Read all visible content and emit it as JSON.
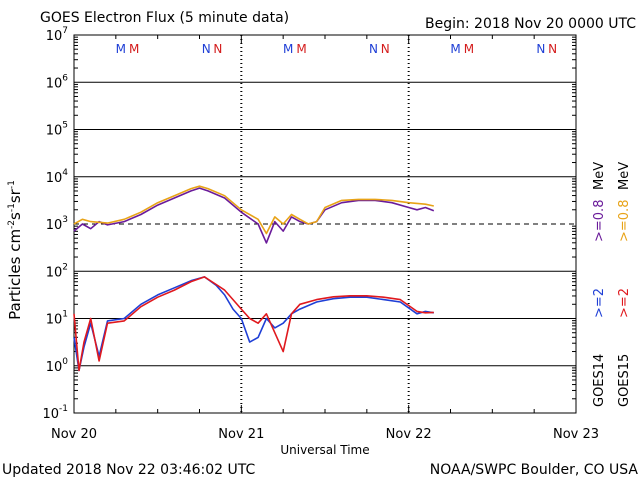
{
  "header": {
    "title": "GOES Electron Flux (5 minute data)",
    "begin": "Begin: 2018 Nov 20 0000 UTC"
  },
  "footer": {
    "updated": "Updated 2018 Nov 22 03:46:02 UTC",
    "credit": "NOAA/SWPC Boulder, CO USA"
  },
  "chart_data": {
    "type": "line",
    "title": "GOES Electron Flux (5 minute data)",
    "xlabel": "Universal Time",
    "ylabel": "Particles cm-2 s-1 sr-1",
    "yscale": "log",
    "ylim_exp": [
      -1,
      7
    ],
    "y_ticks": [
      {
        "base": "10",
        "exp": "7"
      },
      {
        "base": "10",
        "exp": "6"
      },
      {
        "base": "10",
        "exp": "5"
      },
      {
        "base": "10",
        "exp": "4"
      },
      {
        "base": "10",
        "exp": "3"
      },
      {
        "base": "10",
        "exp": "2"
      },
      {
        "base": "10",
        "exp": "1"
      },
      {
        "base": "10",
        "exp": "0"
      },
      {
        "base": "10",
        "exp": "-1"
      }
    ],
    "x_range_days": [
      0,
      3
    ],
    "x_ticks": [
      "Nov 20",
      "Nov 21",
      "Nov 22",
      "Nov 23"
    ],
    "threshold_exp": 3,
    "markers": [
      {
        "day": 0.28,
        "label": "M",
        "color": "#1f3fd6"
      },
      {
        "day": 0.36,
        "label": "M",
        "color": "#d41c1c"
      },
      {
        "day": 0.79,
        "label": "N",
        "color": "#1f3fd6"
      },
      {
        "day": 0.86,
        "label": "N",
        "color": "#d41c1c"
      },
      {
        "day": 1.28,
        "label": "M",
        "color": "#1f3fd6"
      },
      {
        "day": 1.36,
        "label": "M",
        "color": "#d41c1c"
      },
      {
        "day": 1.79,
        "label": "N",
        "color": "#1f3fd6"
      },
      {
        "day": 1.86,
        "label": "N",
        "color": "#d41c1c"
      },
      {
        "day": 2.28,
        "label": "M",
        "color": "#1f3fd6"
      },
      {
        "day": 2.36,
        "label": "M",
        "color": "#d41c1c"
      },
      {
        "day": 2.79,
        "label": "N",
        "color": "#1f3fd6"
      },
      {
        "day": 2.86,
        "label": "N",
        "color": "#d41c1c"
      }
    ],
    "series": [
      {
        "name": "GOES14 >=0.8 MeV",
        "color": "#6a1b9a",
        "points": [
          [
            0.0,
            2.85
          ],
          [
            0.05,
            3.0
          ],
          [
            0.1,
            2.9
          ],
          [
            0.15,
            3.05
          ],
          [
            0.2,
            2.98
          ],
          [
            0.3,
            3.05
          ],
          [
            0.4,
            3.2
          ],
          [
            0.5,
            3.4
          ],
          [
            0.6,
            3.55
          ],
          [
            0.7,
            3.7
          ],
          [
            0.75,
            3.76
          ],
          [
            0.8,
            3.7
          ],
          [
            0.9,
            3.55
          ],
          [
            1.0,
            3.25
          ],
          [
            1.1,
            3.0
          ],
          [
            1.15,
            2.6
          ],
          [
            1.2,
            3.05
          ],
          [
            1.25,
            2.85
          ],
          [
            1.3,
            3.15
          ],
          [
            1.35,
            3.05
          ],
          [
            1.4,
            3.0
          ],
          [
            1.45,
            3.05
          ],
          [
            1.5,
            3.3
          ],
          [
            1.6,
            3.45
          ],
          [
            1.7,
            3.5
          ],
          [
            1.8,
            3.5
          ],
          [
            1.9,
            3.45
          ],
          [
            2.0,
            3.35
          ],
          [
            2.05,
            3.3
          ],
          [
            2.1,
            3.35
          ],
          [
            2.15,
            3.28
          ]
        ]
      },
      {
        "name": "GOES15 >=0.8 MeV",
        "color": "#e8a317",
        "points": [
          [
            0.0,
            3.0
          ],
          [
            0.05,
            3.1
          ],
          [
            0.1,
            3.05
          ],
          [
            0.2,
            3.02
          ],
          [
            0.3,
            3.1
          ],
          [
            0.4,
            3.25
          ],
          [
            0.5,
            3.45
          ],
          [
            0.6,
            3.6
          ],
          [
            0.7,
            3.75
          ],
          [
            0.75,
            3.8
          ],
          [
            0.8,
            3.75
          ],
          [
            0.9,
            3.6
          ],
          [
            1.0,
            3.3
          ],
          [
            1.1,
            3.1
          ],
          [
            1.15,
            2.8
          ],
          [
            1.2,
            3.15
          ],
          [
            1.25,
            3.0
          ],
          [
            1.3,
            3.2
          ],
          [
            1.35,
            3.1
          ],
          [
            1.4,
            3.0
          ],
          [
            1.45,
            3.05
          ],
          [
            1.5,
            3.35
          ],
          [
            1.6,
            3.5
          ],
          [
            1.7,
            3.52
          ],
          [
            1.8,
            3.52
          ],
          [
            1.9,
            3.5
          ],
          [
            2.0,
            3.45
          ],
          [
            2.1,
            3.42
          ],
          [
            2.15,
            3.38
          ]
        ]
      },
      {
        "name": "GOES14 >=2 MeV",
        "color": "#1f3fd6",
        "points": [
          [
            0.0,
            0.6
          ],
          [
            0.03,
            -0.1
          ],
          [
            0.06,
            0.4
          ],
          [
            0.1,
            0.9
          ],
          [
            0.15,
            0.2
          ],
          [
            0.2,
            0.95
          ],
          [
            0.3,
            1.0
          ],
          [
            0.4,
            1.3
          ],
          [
            0.5,
            1.5
          ],
          [
            0.6,
            1.65
          ],
          [
            0.7,
            1.8
          ],
          [
            0.78,
            1.88
          ],
          [
            0.85,
            1.7
          ],
          [
            0.9,
            1.5
          ],
          [
            0.95,
            1.2
          ],
          [
            1.0,
            1.0
          ],
          [
            1.05,
            0.5
          ],
          [
            1.1,
            0.6
          ],
          [
            1.15,
            1.0
          ],
          [
            1.2,
            0.8
          ],
          [
            1.25,
            0.9
          ],
          [
            1.3,
            1.1
          ],
          [
            1.35,
            1.2
          ],
          [
            1.45,
            1.35
          ],
          [
            1.55,
            1.42
          ],
          [
            1.65,
            1.45
          ],
          [
            1.75,
            1.45
          ],
          [
            1.85,
            1.4
          ],
          [
            1.95,
            1.35
          ],
          [
            2.05,
            1.1
          ],
          [
            2.1,
            1.15
          ],
          [
            2.15,
            1.12
          ]
        ]
      },
      {
        "name": "GOES15 >=2 MeV",
        "color": "#e0191e",
        "points": [
          [
            0.0,
            1.1
          ],
          [
            0.03,
            -0.1
          ],
          [
            0.06,
            0.5
          ],
          [
            0.1,
            1.0
          ],
          [
            0.15,
            0.1
          ],
          [
            0.2,
            0.9
          ],
          [
            0.3,
            0.95
          ],
          [
            0.4,
            1.25
          ],
          [
            0.5,
            1.45
          ],
          [
            0.6,
            1.6
          ],
          [
            0.7,
            1.78
          ],
          [
            0.78,
            1.88
          ],
          [
            0.85,
            1.72
          ],
          [
            0.9,
            1.6
          ],
          [
            0.95,
            1.4
          ],
          [
            1.0,
            1.2
          ],
          [
            1.05,
            1.0
          ],
          [
            1.1,
            0.9
          ],
          [
            1.15,
            1.1
          ],
          [
            1.2,
            0.7
          ],
          [
            1.25,
            0.3
          ],
          [
            1.3,
            1.1
          ],
          [
            1.35,
            1.3
          ],
          [
            1.45,
            1.4
          ],
          [
            1.55,
            1.46
          ],
          [
            1.65,
            1.48
          ],
          [
            1.75,
            1.48
          ],
          [
            1.85,
            1.45
          ],
          [
            1.95,
            1.4
          ],
          [
            2.05,
            1.15
          ],
          [
            2.1,
            1.12
          ],
          [
            2.15,
            1.13
          ]
        ]
      }
    ],
    "legend_right": {
      "goes14": "GOES14",
      "goes15": "GOES15",
      "e2_14": ">=2",
      "e2_15": ">=2",
      "e08_14": ">=0.8",
      "e08_15": ">=0.8",
      "mev1": "MeV",
      "mev2": "MeV"
    }
  }
}
